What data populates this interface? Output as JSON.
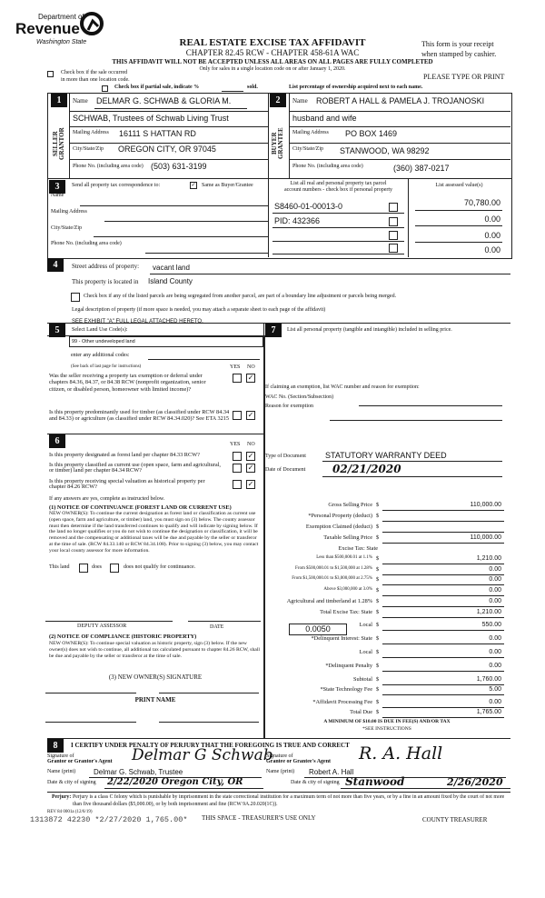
{
  "header": {
    "logo": {
      "line1": "Department of",
      "line2": "Revenue",
      "line3": "Washington State"
    },
    "title": "REAL ESTATE EXCISE TAX AFFIDAVIT",
    "subtitle": "CHAPTER 82.45 RCW - CHAPTER 458-61A WAC",
    "warning": "THIS AFFIDAVIT WILL NOT BE ACCEPTED UNLESS ALL AREAS ON ALL PAGES ARE FULLY COMPLETED",
    "only_for": "Only for sales in a single location code on or after January 1, 2020.",
    "receipt_line1": "This form is your receipt",
    "receipt_line2": "when stamped by cashier.",
    "multi_location_line1": "Check box if the sale occurred",
    "multi_location_line2": "in more than one location code.",
    "please_type": "PLEASE TYPE OR PRINT",
    "partial_sale": "Check box if partial sale, indicate %",
    "sold": "sold.",
    "list_percentage": "List percentage of ownership acquired next to each name."
  },
  "seller": {
    "number": "1",
    "side_label": "SELLER GRANTOR",
    "name_label": "Name",
    "name1": "DELMAR G. SCHWAB & GLORIA M.",
    "name2": "SCHWAB, Trustees of Schwab Living Trust",
    "mailing_label": "Mailing Address",
    "mailing": "16111 S HATTAN RD",
    "city_label": "City/State/Zip",
    "city": "OREGON CITY, OR  97045",
    "phone_label": "Phone No. (including area code)",
    "phone": "(503) 631-3199"
  },
  "buyer": {
    "number": "2",
    "side_label": "BUYER GRANTEE",
    "name_label": "Name",
    "name1": "ROBERT A HALL & PAMELA J. TROJANOSKI",
    "name2": "husband and wife",
    "mailing_label": "Mailing Address",
    "mailing": "PO BOX 1469",
    "city_label": "City/State/Zip",
    "city": "STANWOOD, WA  98292",
    "phone_label": "Phone No. (including area code)",
    "phone": "(360) 387-0217"
  },
  "section3": {
    "number": "3",
    "send_label": "Send all property tax correspondence to:",
    "same_as": "Same as Buyer/Grantee",
    "same_checked": true,
    "name_label": "Name",
    "mailing_label": "Mailing Address",
    "city_label": "City/State/Zip",
    "phone_label": "Phone No. (including area code)",
    "parcel_header1": "List all real and personal property tax parcel",
    "parcel_header2": "account numbers - check box if personal property",
    "assessed_header": "List assessed value(s)",
    "parcels": [
      {
        "number": "S8460-01-00013-0",
        "value": "70,780.00"
      },
      {
        "number": "PID: 432366",
        "value": "0.00"
      },
      {
        "number": "",
        "value": "0.00"
      },
      {
        "number": "",
        "value": "0.00"
      }
    ]
  },
  "section4": {
    "number": "4",
    "street_label": "Street address of property:",
    "street": "vacant land",
    "located_label": "This property is located in",
    "county": "Island County",
    "segregated": "Check box if any of the listed parcels are being segregated from another parcel, are part of a boundary line adjustment or parcels being merged.",
    "legal_label": "Legal description of property (if more space is needed, you may attach a separate sheet to each page of the affidavit)",
    "legal": "SEE EXHIBIT \"A\" FULL LEGAL ATTACHED HERETO."
  },
  "section5": {
    "number": "5",
    "land_use_label": "Select Land Use Code(s):",
    "land_use": "99 - Other undeveloped land",
    "additional": "enter any additional codes:",
    "see_back": "(See back of last page for instructions)",
    "yes": "YES",
    "no": "NO",
    "q1": "Was the seller receiving a property tax exemption or deferral under chapters 84.36, 84.37, or 84.38 RCW (nonprofit organization, senior citizen, or disabled person, homeowner with limited income)?",
    "q2": "Is this property predominantly used for timber (as classified under RCW 84.34 and 84.33) or agriculture (as classified under RCW 84.34.020)? See ETA 3215"
  },
  "section6": {
    "number": "6",
    "yes": "YES",
    "no": "NO",
    "q1": "Is this property designated as forest land per chapter 84.33 RCW?",
    "q2": "Is this property classified as current use (open space, farm and agricultural, or timber) land per chapter 84.34 RCW?",
    "q3": "Is this property receiving special valuation as historical property per chapter 84.26 RCW?",
    "if_yes": "If any answers are yes, complete as instructed below.",
    "notice1_title": "(1) NOTICE OF CONTINUANCE (FOREST LAND OR CURRENT USE)",
    "notice1_body": "NEW OWNER(S): To continue the current designation as forest land or classification as current use (open space, farm and agriculture, or timber) land, you must sign on (3) below. The county assessor must then determine if the land transferred continues to qualify and will indicate by signing below. If the land no longer qualifies or you do not wish to continue the designation or classification, it will be removed and the compensating or additional taxes will be due and payable by the seller or transferor at the time of sale. (RCW 84.33.140 or RCW 84.34.108). Prior to signing (3) below, you may contact your local county assessor for more information.",
    "this_land": "This land",
    "does": "does",
    "does_not": "does not qualify for continuance.",
    "deputy": "DEPUTY ASSESSOR",
    "date": "DATE",
    "notice2_title": "(2) NOTICE OF COMPLIANCE (HISTORIC PROPERTY)",
    "notice2_body": "NEW OWNER(S): To continue special valuation as historic property, sign (3) below. If the new owner(s) does not wish to continue, all additional tax calculated pursuant to chapter 84.26 RCW, shall be due and payable by the seller or transferor at the time of sale.",
    "signature": "(3) NEW OWNER(S) SIGNATURE",
    "print_name": "PRINT NAME"
  },
  "section7": {
    "number": "7",
    "personal_property": "List all personal property (tangible and intangible) included in selling price.",
    "exemption_intro": "If claiming an exemption, list WAC number and reason for exemption:",
    "wac_label": "WAC No. (Section/Subsection)",
    "reason_label": "Reason for exemption",
    "doc_type_label": "Type of Document",
    "doc_type": "STATUTORY WARRANTY DEED",
    "doc_date_label": "Date of Document",
    "doc_date": "02/21/2020",
    "local_rate": "0.0050",
    "tax": [
      {
        "label": "Gross Selling Price",
        "value": "110,000.00"
      },
      {
        "label": "*Personal Property (deduct)",
        "value": ""
      },
      {
        "label": "Exemption Claimed (deduct)",
        "value": ""
      },
      {
        "label": "Taxable Selling Price",
        "value": "110,000.00"
      },
      {
        "label": "Excise Tax: State",
        "value": ""
      },
      {
        "label": "Less than $500,000.01 at 1.1%",
        "value": "1,210.00"
      },
      {
        "label": "From $500,000.01 to $1,500,000 at 1.28%",
        "value": "0.00"
      },
      {
        "label": "From $1,500,000.01 to $3,000,000 at 2.75%",
        "value": "0.00"
      },
      {
        "label": "Above $3,000,000 at 3.0%",
        "value": "0.00"
      },
      {
        "label": "Agricultural and timberland at 1.28%",
        "value": "0.00"
      },
      {
        "label": "Total Excise Tax: State",
        "value": "1,210.00"
      },
      {
        "label": "Local",
        "value": "550.00"
      },
      {
        "label": "*Delinquent Interest: State",
        "value": "0.00"
      },
      {
        "label": "Local",
        "value": "0.00"
      },
      {
        "label": "*Delinquent Penalty",
        "value": "0.00"
      },
      {
        "label": "Subtotal",
        "value": "1,760.00"
      },
      {
        "label": "*State Technology Fee",
        "value": "5.00"
      },
      {
        "label": "*Affidavit Processing Fee",
        "value": "0.00"
      },
      {
        "label": "Total Due",
        "value": "1,765.00"
      }
    ],
    "dollar": "$",
    "minimum": "A MINIMUM OF $10.00 IS DUE IN FEE(S) AND/OR TAX",
    "see_instructions": "*SEE INSTRUCTIONS"
  },
  "section8": {
    "number": "8",
    "certify": "I CERTIFY UNDER PENALTY OF PERJURY THAT THE FOREGOING IS TRUE AND CORRECT",
    "grantor_sig_label1": "Signature of",
    "grantor_sig_label2": "Grantor or Grantor's Agent",
    "grantor_signature": "Delmar G Schwab",
    "grantee_sig_label1": "Signature of",
    "grantee_sig_label2": "Grantee or Grantee's Agent",
    "grantee_signature": "R. A. Hall",
    "name_label": "Name (print)",
    "grantor_name": "Delmar G. Schwab, Trustee",
    "grantee_name": "Robert A. Hall",
    "date_city_label": "Date & city of signing",
    "grantor_date_city": "2/22/2020  Oregon City, OR",
    "grantee_city": "Stanwood",
    "grantee_date": "2/26/2020",
    "perjury_label": "Perjury:",
    "perjury": "Perjury is a class C felony which is punishable by imprisonment in the state correctional institution for a maximum term of not more than five years, or by a fine in an amount fixed by the court of not more than five thousand dollars ($5,000.00), or by both imprisonment and fine (RCW 9A.20.020(1C)).",
    "rev": "REV 84 0001a (12/6/19)"
  },
  "footer": {
    "stamp": "1313872 42230 *2/27/2020 1,765.00*",
    "treasurer_use": "THIS SPACE - TREASURER'S USE ONLY",
    "county_treasurer": "COUNTY TREASURER"
  }
}
